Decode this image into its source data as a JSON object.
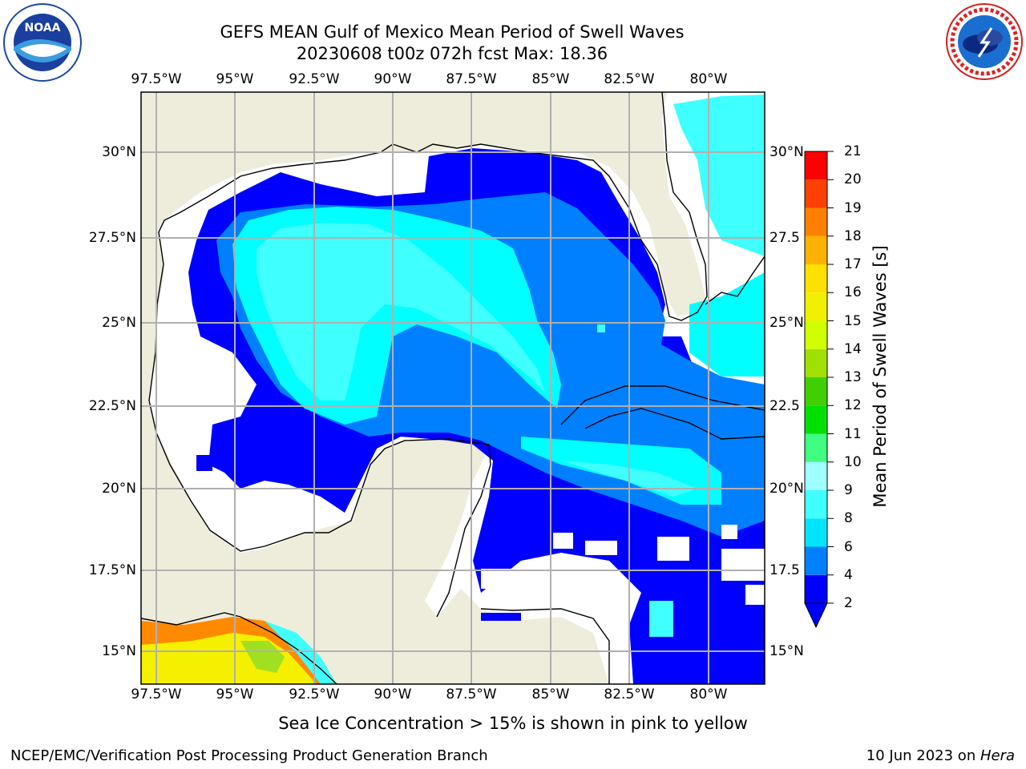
{
  "header": {
    "title_line1": "GEFS MEAN Gulf of Mexico Mean Period of Swell Waves",
    "title_line2": "20230608 t00z 072h fcst   Max: 18.36"
  },
  "logos": {
    "left": {
      "text": "NOAA",
      "ring_text": "NATIONAL OCEANIC AND ATMOSPHERIC ADMINISTRATION · U.S. DEPARTMENT OF COMMERCE"
    },
    "right": {
      "ring_text": "NATIONAL WEATHER SERVICE"
    }
  },
  "map": {
    "lon_labels": [
      "97.5°W",
      "95°W",
      "92.5°W",
      "90°W",
      "87.5°W",
      "85°W",
      "82.5°W",
      "80°W"
    ],
    "lat_labels_left": [
      "30°N",
      "27.5°N",
      "25°N",
      "22.5°N",
      "20°N",
      "17.5°N",
      "15°N"
    ],
    "lat_labels_right": [
      "30°N",
      "27.5",
      "25°N",
      "22.5",
      "20°N",
      "17.5",
      "15°N"
    ],
    "colors": {
      "land": "#eeeddc",
      "no_data": "#ffffff",
      "p2": "#0000ff",
      "p4": "#0080ff",
      "p6": "#00ffff",
      "p8": "#40ffff"
    }
  },
  "colorbar": {
    "label": "Mean Period of Swell Waves [s]",
    "ticks": [
      "2",
      "4",
      "6",
      "8",
      "9",
      "10",
      "11",
      "12",
      "13",
      "14",
      "15",
      "16",
      "17",
      "18",
      "19",
      "20",
      "21"
    ],
    "colors": [
      "#0000ff",
      "#0080ff",
      "#00e5ff",
      "#40ffff",
      "#a0ffff",
      "#40ff80",
      "#00e000",
      "#40d000",
      "#a0e000",
      "#d0ff00",
      "#f0f000",
      "#ffe000",
      "#ffb000",
      "#ff8000",
      "#ff4000",
      "#ff0000"
    ]
  },
  "note": "Sea Ice Concentration > 15% is shown in pink to yellow",
  "footer": {
    "left": "NCEP/EMC/Verification Post Processing Product Generation Branch",
    "right_prefix": "10 Jun 2023 on ",
    "right_italic": "Hera"
  }
}
